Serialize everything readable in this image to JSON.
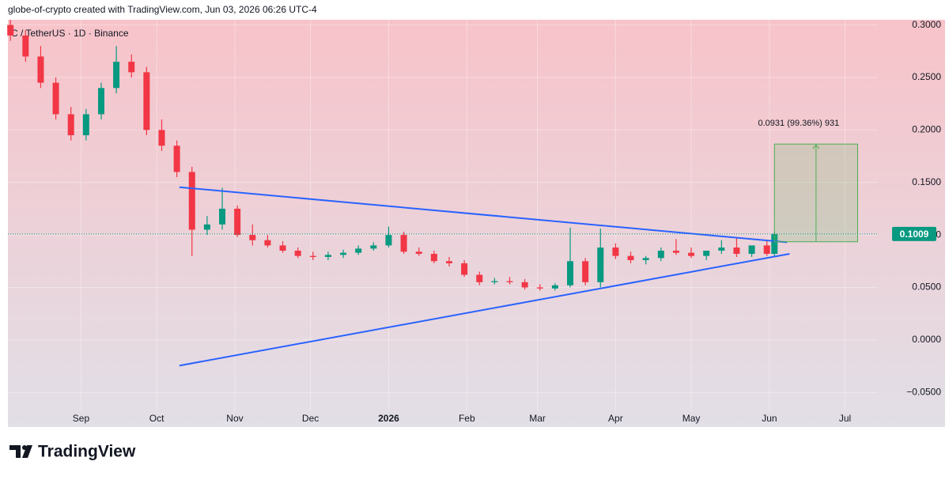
{
  "header": {
    "credit": "globe-of-crypto created with TradingView.com, Jun 03, 2026 06:26 UTC-4",
    "brand": "TradingView"
  },
  "chart_data": {
    "type": "candlestick",
    "title": "C / TetherUS · 1D · Binance",
    "x": [
      -28,
      -22,
      -16,
      -10,
      -4,
      2,
      8,
      14,
      20,
      26,
      32,
      38,
      44,
      50,
      56,
      62,
      68,
      74,
      80,
      86,
      92,
      98,
      104,
      110,
      116,
      122,
      128,
      134,
      140,
      146,
      152,
      158,
      164,
      170,
      176,
      182,
      188,
      194,
      200,
      206,
      212,
      218,
      224,
      230,
      236,
      242,
      248,
      254,
      260,
      266,
      272,
      275
    ],
    "open": [
      0.3,
      0.29,
      0.27,
      0.245,
      0.215,
      0.195,
      0.215,
      0.24,
      0.265,
      0.255,
      0.2,
      0.185,
      0.16,
      0.105,
      0.11,
      0.125,
      0.1,
      0.095,
      0.09,
      0.085,
      0.08,
      0.079,
      0.081,
      0.083,
      0.087,
      0.09,
      0.1,
      0.084,
      0.082,
      0.075,
      0.073,
      0.062,
      0.055,
      0.056,
      0.055,
      0.05,
      0.049,
      0.052,
      0.075,
      0.055,
      0.088,
      0.08,
      0.076,
      0.078,
      0.085,
      0.083,
      0.08,
      0.085,
      0.088,
      0.082,
      0.09,
      0.082
    ],
    "high": [
      0.305,
      0.295,
      0.28,
      0.25,
      0.222,
      0.22,
      0.245,
      0.28,
      0.272,
      0.26,
      0.21,
      0.19,
      0.165,
      0.118,
      0.145,
      0.128,
      0.11,
      0.1,
      0.094,
      0.088,
      0.084,
      0.084,
      0.086,
      0.09,
      0.093,
      0.108,
      0.103,
      0.088,
      0.085,
      0.079,
      0.076,
      0.065,
      0.059,
      0.06,
      0.058,
      0.053,
      0.054,
      0.107,
      0.078,
      0.106,
      0.092,
      0.084,
      0.08,
      0.088,
      0.096,
      0.088,
      0.084,
      0.095,
      0.097,
      0.088,
      0.095,
      0.103
    ],
    "low": [
      0.285,
      0.265,
      0.24,
      0.21,
      0.19,
      0.19,
      0.21,
      0.235,
      0.25,
      0.195,
      0.18,
      0.155,
      0.08,
      0.1,
      0.105,
      0.098,
      0.09,
      0.088,
      0.083,
      0.078,
      0.076,
      0.076,
      0.078,
      0.081,
      0.085,
      0.088,
      0.082,
      0.08,
      0.073,
      0.07,
      0.06,
      0.052,
      0.053,
      0.053,
      0.048,
      0.047,
      0.047,
      0.05,
      0.052,
      0.05,
      0.077,
      0.073,
      0.072,
      0.075,
      0.081,
      0.078,
      0.076,
      0.082,
      0.079,
      0.079,
      0.08,
      0.08
    ],
    "close": [
      0.29,
      0.27,
      0.245,
      0.215,
      0.195,
      0.215,
      0.24,
      0.265,
      0.255,
      0.2,
      0.185,
      0.16,
      0.105,
      0.11,
      0.125,
      0.1,
      0.095,
      0.09,
      0.085,
      0.08,
      0.079,
      0.081,
      0.083,
      0.087,
      0.09,
      0.1,
      0.084,
      0.082,
      0.075,
      0.073,
      0.062,
      0.055,
      0.056,
      0.055,
      0.05,
      0.049,
      0.052,
      0.075,
      0.055,
      0.088,
      0.08,
      0.076,
      0.078,
      0.085,
      0.083,
      0.08,
      0.085,
      0.088,
      0.082,
      0.09,
      0.082,
      0.1009
    ],
    "up_color": "#089981",
    "down_color": "#f23645",
    "xlim": [
      -29,
      316
    ],
    "xticks": [
      {
        "value": 0,
        "label": "Sep"
      },
      {
        "value": 30,
        "label": "Oct"
      },
      {
        "value": 61,
        "label": "Nov"
      },
      {
        "value": 91,
        "label": "Dec"
      },
      {
        "value": 122,
        "label": "2026"
      },
      {
        "value": 153,
        "label": "Feb"
      },
      {
        "value": 181,
        "label": "Mar"
      },
      {
        "value": 212,
        "label": "Apr"
      },
      {
        "value": 242,
        "label": "May"
      },
      {
        "value": 273,
        "label": "Jun"
      },
      {
        "value": 303,
        "label": "Jul"
      }
    ],
    "ylim": [
      -0.083,
      0.305
    ],
    "yticks": [
      {
        "value": 0.3,
        "label": "0.3000"
      },
      {
        "value": 0.25,
        "label": "0.2500"
      },
      {
        "value": 0.2,
        "label": "0.2000"
      },
      {
        "value": 0.15,
        "label": "0.1500"
      },
      {
        "value": 0.1,
        "label": "0.1000"
      },
      {
        "value": 0.05,
        "label": "0.0500"
      },
      {
        "value": 0,
        "label": "0.0000"
      },
      {
        "value": -0.05,
        "label": "−0.0500"
      }
    ],
    "grid": true,
    "trendlines": [
      {
        "x": [
          39,
          280
        ],
        "y": [
          0.1455,
          0.093
        ]
      },
      {
        "x": [
          39,
          281
        ],
        "y": [
          -0.0245,
          0.082
        ]
      }
    ],
    "trendline_color": "#2962ff",
    "measure": {
      "x": [
        275,
        308
      ],
      "y": [
        0.0935,
        0.1866
      ],
      "label": "0.0931 (99.36%) 931",
      "color": "#4caf50"
    }
  }
}
